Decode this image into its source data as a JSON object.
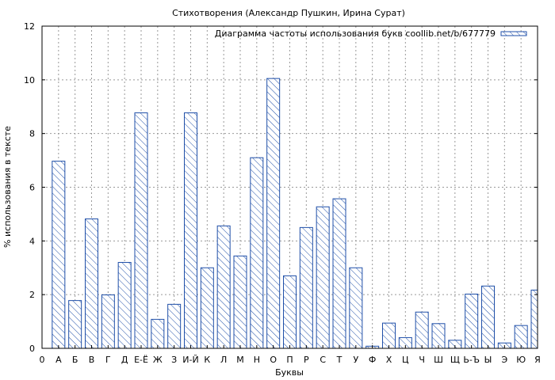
{
  "chart_data": {
    "type": "bar",
    "title": "Стихотворения (Александр Пушкин, Ирина Сурат)",
    "xlabel": "Буквы",
    "ylabel": "% использования в тексте",
    "ylim": [
      0,
      12
    ],
    "yticks": [
      0,
      2,
      4,
      6,
      8,
      10,
      12
    ],
    "grid": true,
    "legend_position": "top-right",
    "x_zero_label": "0",
    "categories": [
      "А",
      "Б",
      "В",
      "Г",
      "Д",
      "Е-Ё",
      "Ж",
      "З",
      "И-Й",
      "К",
      "Л",
      "М",
      "Н",
      "О",
      "П",
      "Р",
      "С",
      "Т",
      "У",
      "Ф",
      "Х",
      "Ц",
      "Ч",
      "Ш",
      "Щ",
      "Ь-Ъ",
      "Ы",
      "Э",
      "Ю",
      "Я"
    ],
    "series": [
      {
        "name": "Диаграмма частоты использования букв coollib.net/b/677779",
        "color": "#1f4fa8",
        "values": [
          6.97,
          1.78,
          4.82,
          1.99,
          3.2,
          8.77,
          1.08,
          1.64,
          8.77,
          3.0,
          4.56,
          3.44,
          7.1,
          10.05,
          2.7,
          4.5,
          5.27,
          5.57,
          3.0,
          0.08,
          0.94,
          0.4,
          1.35,
          0.92,
          0.3,
          2.02,
          2.32,
          0.2,
          0.85,
          2.17
        ]
      }
    ]
  }
}
